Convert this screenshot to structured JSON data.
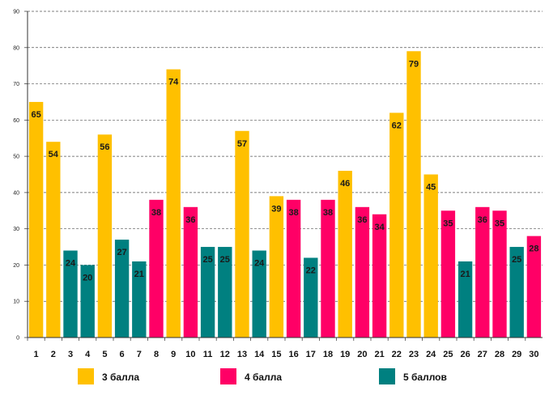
{
  "chart_data": {
    "type": "bar",
    "title": "",
    "xlabel": "",
    "ylabel": "",
    "ylim": [
      0,
      90
    ],
    "yticks": [
      0,
      10,
      20,
      30,
      40,
      50,
      60,
      70,
      80,
      90
    ],
    "grid": true,
    "legend_position": "bottom",
    "categories": [
      "1",
      "2",
      "3",
      "4",
      "5",
      "6",
      "7",
      "8",
      "9",
      "10",
      "11",
      "12",
      "13",
      "14",
      "15",
      "16",
      "17",
      "18",
      "19",
      "20",
      "21",
      "22",
      "23",
      "24",
      "25",
      "26",
      "27",
      "28",
      "29",
      "30"
    ],
    "values": [
      65,
      54,
      24,
      20,
      56,
      27,
      21,
      38,
      74,
      36,
      25,
      25,
      57,
      24,
      39,
      38,
      22,
      38,
      46,
      36,
      34,
      62,
      79,
      45,
      35,
      21,
      36,
      35,
      25,
      28
    ],
    "groups": [
      "3 балла",
      "3 балла",
      "5 баллов",
      "5 баллов",
      "3 балла",
      "5 баллов",
      "5 баллов",
      "4 балла",
      "3 балла",
      "4 балла",
      "5 баллов",
      "5 баллов",
      "3 балла",
      "5 баллов",
      "3 балла",
      "4 балла",
      "5 баллов",
      "4 балла",
      "3 балла",
      "4 балла",
      "4 балла",
      "3 балла",
      "3 балла",
      "3 балла",
      "4 балла",
      "5 баллов",
      "4 балла",
      "4 балла",
      "5 баллов",
      "4 балла"
    ],
    "legend": [
      {
        "label": "3 балла",
        "color": "#ffc000"
      },
      {
        "label": "4 балла",
        "color": "#ff0066"
      },
      {
        "label": "5 баллов",
        "color": "#008080"
      }
    ]
  }
}
